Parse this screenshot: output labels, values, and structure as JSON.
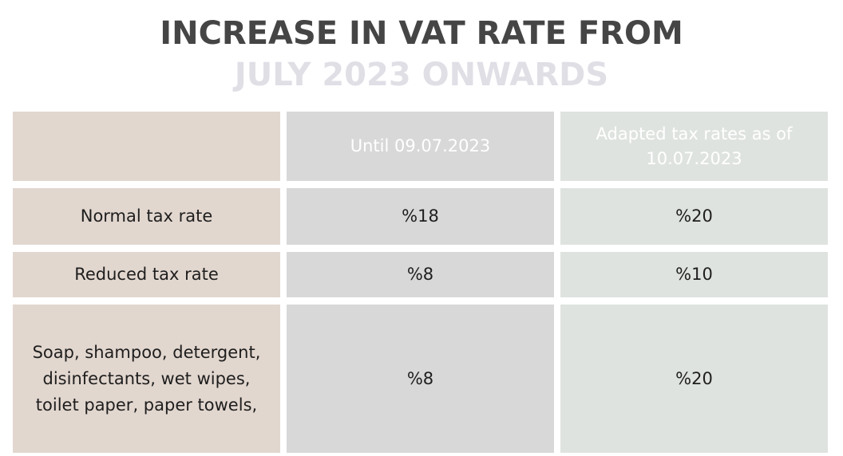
{
  "title": {
    "line1": "INCREASE IN VAT RATE FROM",
    "line2": "JULY 2023 ONWARDS"
  },
  "table": {
    "header": [
      "",
      "Until 09.07.2023",
      "Adapted tax rates as of 10.07.2023"
    ],
    "rows": [
      {
        "label": "Normal tax rate",
        "until": "%18",
        "adapted": "%20"
      },
      {
        "label": "Reduced tax rate",
        "until": "%8",
        "adapted": "%10"
      },
      {
        "label": "Soap, shampoo, detergent,\ndisinfectants, wet wipes,\ntoilet paper, paper towels,",
        "until": "%8",
        "adapted": "%20"
      }
    ]
  },
  "colors": {
    "title_dark": "#454545",
    "title_light": "#e0dfe6",
    "col_label": "#e2d7cf",
    "col_until": "#d8d8d8",
    "col_adapted": "#dfe3df"
  }
}
